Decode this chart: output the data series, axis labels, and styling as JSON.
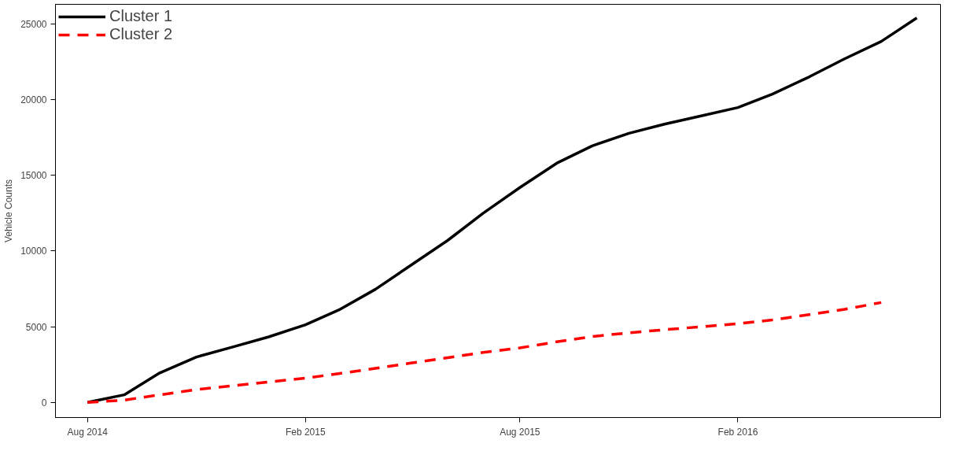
{
  "chart_data": {
    "type": "line",
    "ylabel": "Vehicle Counts",
    "legend": "top left",
    "grid": false,
    "xlim": [
      "2014-07-05",
      "2016-07-21"
    ],
    "ylim": [
      -1000,
      26300
    ],
    "xticks": [
      {
        "value": "2014-08",
        "label": "Aug 2014"
      },
      {
        "value": "2015-02",
        "label": "Feb 2015"
      },
      {
        "value": "2015-08",
        "label": "Aug 2015"
      },
      {
        "value": "2016-02",
        "label": "Feb 2016"
      }
    ],
    "yticks": [
      0,
      5000,
      10000,
      15000,
      20000,
      25000
    ],
    "series": [
      {
        "name": "Cluster 1",
        "color": "#000000",
        "line_style": "solid",
        "x": [
          "2014-08",
          "2014-09",
          "2014-10",
          "2014-11",
          "2014-12",
          "2015-01",
          "2015-02",
          "2015-03",
          "2015-04",
          "2015-05",
          "2015-06",
          "2015-07",
          "2015-08",
          "2015-09",
          "2015-10",
          "2015-11",
          "2015-12",
          "2016-01",
          "2016-02",
          "2016-03",
          "2016-04",
          "2016-05",
          "2016-06",
          "2016-07"
        ],
        "values": [
          0,
          500,
          1950,
          3000,
          3650,
          4330,
          5130,
          6100,
          7470,
          9060,
          10700,
          12500,
          14200,
          15800,
          16950,
          17780,
          18380,
          18930,
          19480,
          20370,
          21500,
          22700,
          23850,
          25400
        ]
      },
      {
        "name": "Cluster 2",
        "color": "#ff0000",
        "line_style": "dashed",
        "x": [
          "2014-08",
          "2014-09",
          "2014-10",
          "2014-11",
          "2014-12",
          "2015-01",
          "2015-02",
          "2015-03",
          "2015-04",
          "2015-05",
          "2015-06",
          "2015-07",
          "2015-08",
          "2015-09",
          "2015-10",
          "2015-11",
          "2015-12",
          "2016-01",
          "2016-02",
          "2016-03",
          "2016-04",
          "2016-05",
          "2016-06"
        ],
        "values": [
          0,
          150,
          500,
          850,
          1100,
          1350,
          1600,
          1900,
          2250,
          2600,
          2950,
          3300,
          3600,
          4000,
          4350,
          4600,
          4800,
          5000,
          5200,
          5450,
          5800,
          6150,
          6600
        ]
      }
    ]
  }
}
